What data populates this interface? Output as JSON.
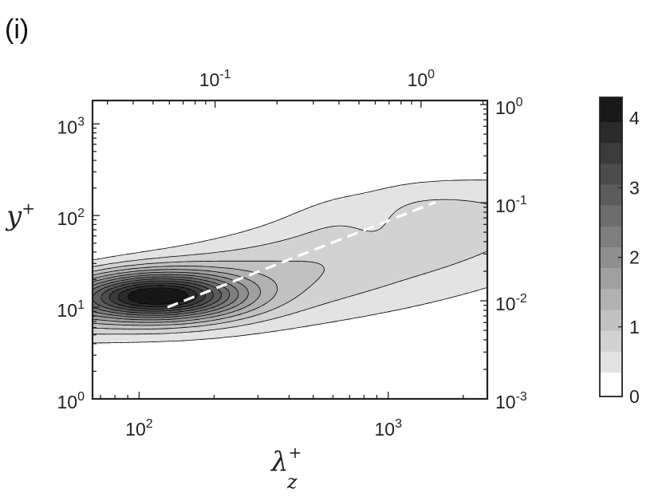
{
  "panel_label": "(i)",
  "chart_data": {
    "type": "heatmap",
    "subtype": "filled-contour",
    "title": "",
    "colormap": "gray-reversed",
    "colors": {
      "overlay_line": "#ffffff",
      "contour_line": "#000000",
      "axis": "#222222"
    },
    "x_axis": {
      "label": "λ",
      "label_superscript": "+",
      "label_subscript": "z",
      "scale": "log",
      "range": [
        65,
        2500
      ],
      "ticks": [
        {
          "value": 100,
          "base": "10",
          "exp": "2"
        },
        {
          "value": 1000,
          "base": "10",
          "exp": "3"
        }
      ]
    },
    "y_axis": {
      "label": "y",
      "label_superscript": "+",
      "scale": "log",
      "range": [
        1,
        1800
      ],
      "ticks": [
        {
          "value": 1,
          "base": "10",
          "exp": "0"
        },
        {
          "value": 10,
          "base": "10",
          "exp": "1"
        },
        {
          "value": 100,
          "base": "10",
          "exp": "2"
        },
        {
          "value": 1000,
          "base": "10",
          "exp": "3"
        }
      ]
    },
    "top_axis": {
      "scale": "log",
      "ticks": [
        {
          "value": 0.1,
          "base": "10",
          "exp": "-1"
        },
        {
          "value": 1,
          "base": "10",
          "exp": "0"
        }
      ]
    },
    "right_axis": {
      "scale": "log",
      "ticks": [
        {
          "value": 0.001,
          "base": "10",
          "exp": "-3"
        },
        {
          "value": 0.01,
          "base": "10",
          "exp": "-2"
        },
        {
          "value": 0.1,
          "base": "10",
          "exp": "-1"
        },
        {
          "value": 1,
          "base": "10",
          "exp": "0"
        }
      ]
    },
    "colorbar": {
      "range": [
        0,
        4.3
      ],
      "ticks": [
        {
          "value": 0,
          "label": "0"
        },
        {
          "value": 1,
          "label": "1"
        },
        {
          "value": 2,
          "label": "2"
        },
        {
          "value": 3,
          "label": "3"
        },
        {
          "value": 4,
          "label": "4"
        }
      ]
    },
    "field": {
      "description_units": "contour level values on colorbar scale",
      "peak_value": 4.3,
      "peak_location": {
        "x": 120,
        "y": 13
      },
      "levels": [
        0.35,
        0.65,
        0.95,
        1.25,
        1.55,
        1.85,
        2.15,
        2.45,
        2.75,
        3.05,
        3.35,
        3.65,
        3.95
      ]
    },
    "overlay_line": {
      "style": "dashed",
      "points": [
        {
          "x": 130,
          "y": 10
        },
        {
          "x": 1550,
          "y": 140
        }
      ]
    }
  }
}
